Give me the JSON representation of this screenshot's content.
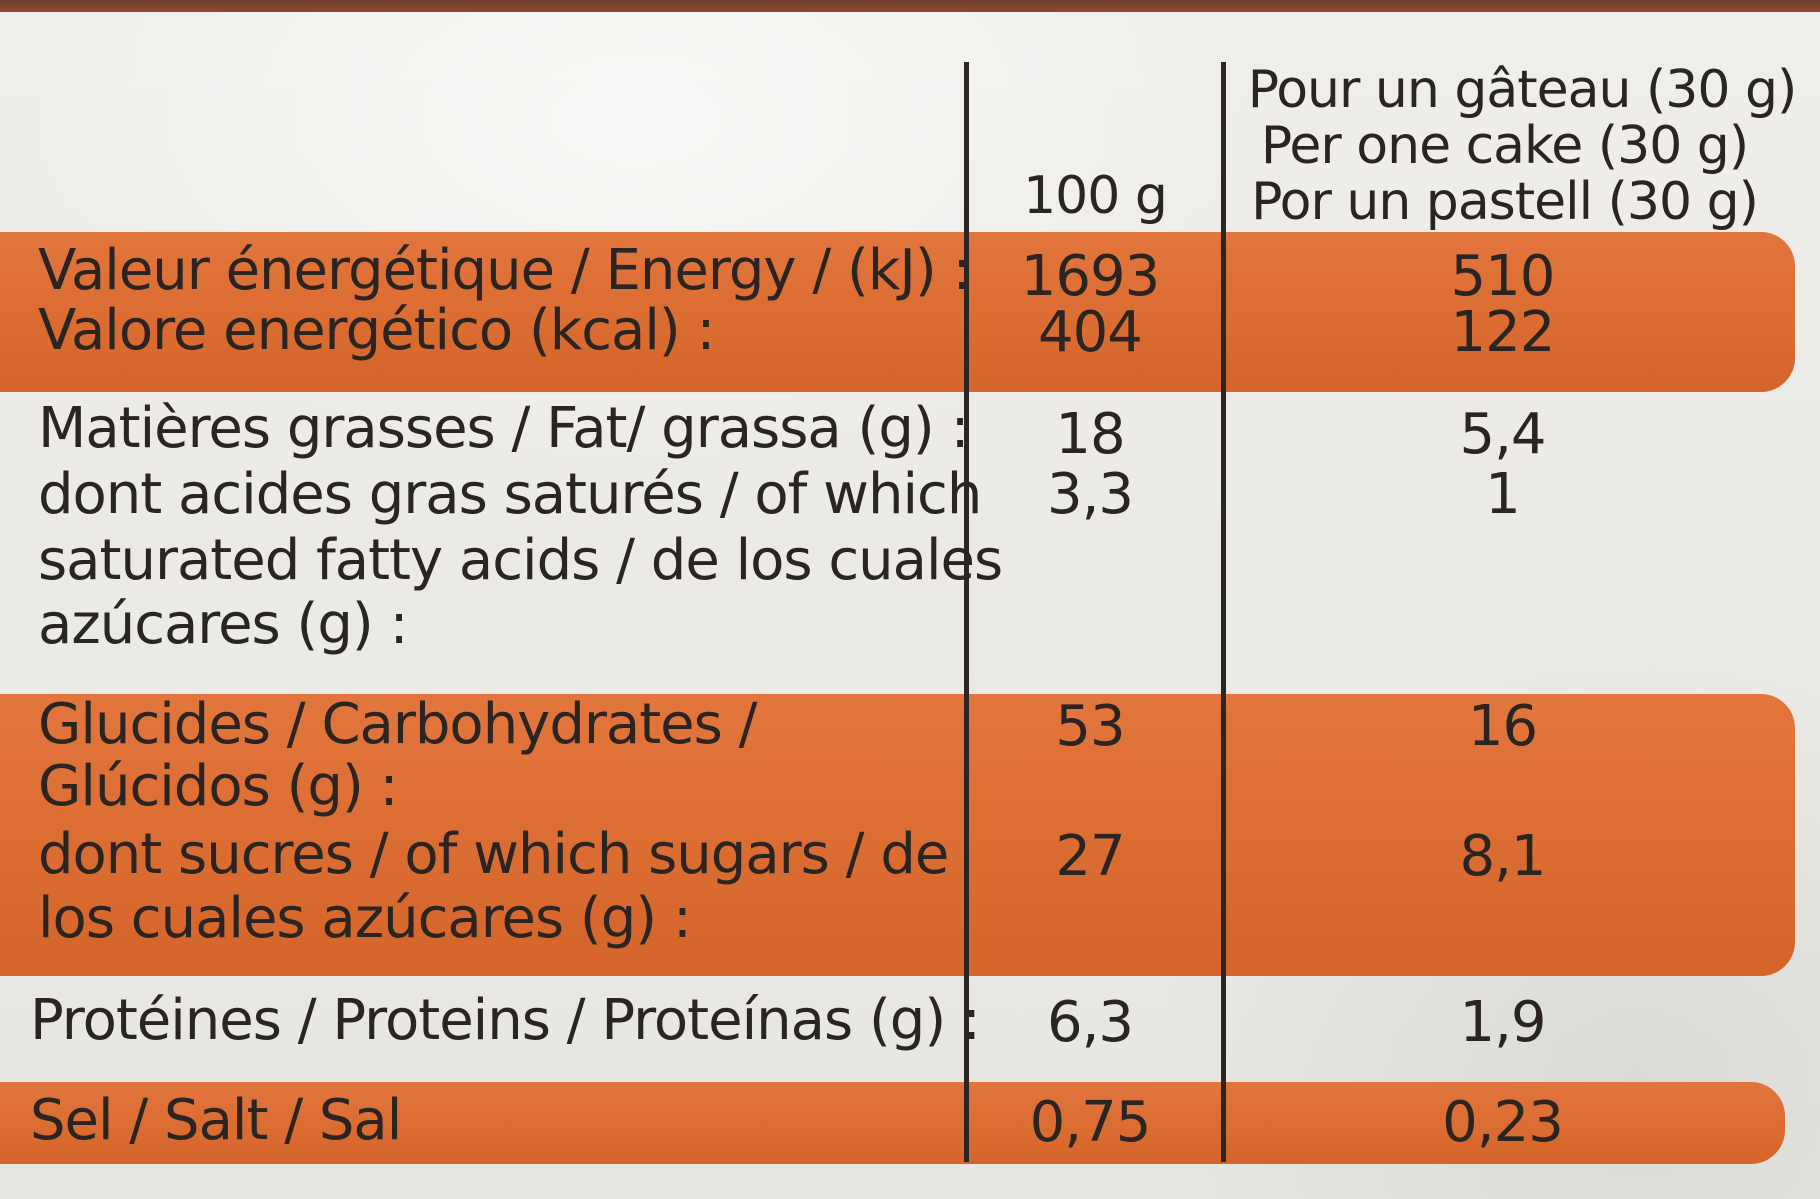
{
  "header": {
    "col_100g": "100 g",
    "col_portion_lines": [
      "Pour un gâteau (30 g)",
      "Per one cake (30 g)",
      "Por un pastell (30 g)"
    ]
  },
  "rows": {
    "energy": {
      "labels": [
        "Valeur énergétique / Energy / (kJ) :",
        "Valore energético (kcal) :"
      ],
      "v100": [
        "1693",
        "404"
      ],
      "vportion": [
        "510",
        "122"
      ]
    },
    "fat": {
      "labels": [
        "Matières grasses / Fat/ grassa (g) :",
        "dont acides gras saturés / of which",
        "saturated fatty acids / de los cuales",
        "azúcares (g) :"
      ],
      "v100": [
        "18",
        "3,3"
      ],
      "vportion": [
        "5,4",
        "1"
      ]
    },
    "carbs": {
      "labels": [
        "Glucides / Carbohydrates /",
        "Glúcidos (g) :",
        "dont sucres / of which sugars / de",
        "los cuales azúcares (g) :"
      ],
      "v100": [
        "53",
        "27"
      ],
      "vportion": [
        "16",
        "8,1"
      ]
    },
    "protein": {
      "labels": [
        "Protéines / Proteins / Proteínas (g) :"
      ],
      "v100": [
        "6,3"
      ],
      "vportion": [
        "1,9"
      ]
    },
    "salt": {
      "labels": [
        "Sel / Salt / Sal"
      ],
      "v100": [
        "0,75"
      ],
      "vportion": [
        "0,23"
      ]
    }
  },
  "colors": {
    "band": "#e06a2c",
    "text": "#2a2522",
    "background": "#ecebe6",
    "rule": "#2b2624"
  }
}
